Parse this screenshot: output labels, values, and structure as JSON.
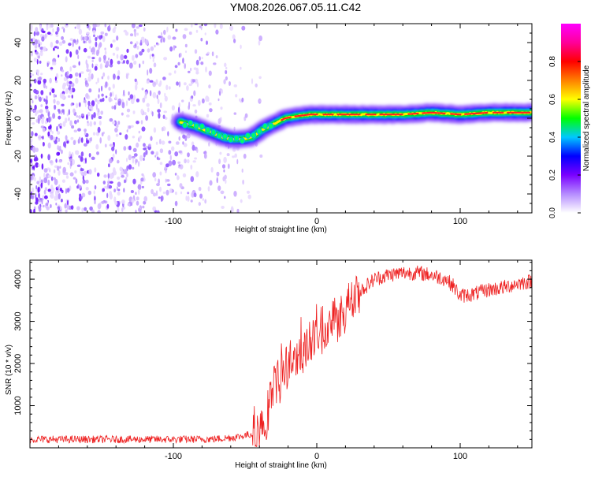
{
  "title": "YM08.2026.067.05.11.C42",
  "chart_data": [
    {
      "type": "heatmap",
      "name": "spectrogram",
      "xlabel": "Height of straight line (km)",
      "ylabel": "Frequency (Hz)",
      "xlim": [
        -200,
        150
      ],
      "ylim": [
        -50,
        50
      ],
      "xticks": [
        -100,
        0,
        100
      ],
      "yticks": [
        -40,
        -20,
        0,
        20,
        40
      ],
      "colorbar": {
        "label": "Normalized spectral amplitude",
        "range": [
          0,
          1
        ],
        "ticks": [
          0.0,
          0.2,
          0.4,
          0.6,
          0.8
        ],
        "tick_labels": [
          "0.0",
          "0.2",
          "0.4",
          "0.6",
          "0.8"
        ],
        "colormap": [
          "#ffffff",
          "#b58cff",
          "#7a00ff",
          "#0000ff",
          "#00c8ff",
          "#00ff00",
          "#ffff00",
          "#ff8000",
          "#ff0000",
          "#ff0099",
          "#ff00ff"
        ]
      },
      "noise_region": {
        "x_range": [
          -200,
          -50
        ],
        "freq_range": [
          -50,
          50
        ]
      },
      "signal_line": {
        "x": [
          -95,
          -85,
          -75,
          -65,
          -58,
          -52,
          -45,
          -38,
          -30,
          -22,
          -15,
          -5,
          0,
          10,
          30,
          60,
          80,
          100,
          120,
          150
        ],
        "y": [
          -2,
          -4,
          -7,
          -10,
          -11,
          -11,
          -10,
          -6,
          -3,
          0,
          1,
          2,
          2,
          2,
          2,
          2,
          3,
          2,
          3,
          3
        ]
      }
    },
    {
      "type": "line",
      "name": "snr",
      "xlabel": "Height of straight line (km)",
      "ylabel": "SNR (10 * v/v)",
      "xlim": [
        -200,
        150
      ],
      "ylim": [
        0,
        4450
      ],
      "xticks": [
        -100,
        0,
        100
      ],
      "yticks": [
        1000,
        2000,
        3000,
        4000
      ],
      "color": "#ee2222",
      "series": {
        "x": [
          -200,
          -150,
          -100,
          -70,
          -55,
          -45,
          -38,
          -34,
          -32,
          -30,
          -28,
          -25,
          -20,
          -15,
          -10,
          0,
          10,
          20,
          25,
          30,
          40,
          50,
          60,
          70,
          80,
          90,
          95,
          100,
          110,
          120,
          130,
          140,
          150
        ],
        "y": [
          200,
          200,
          200,
          210,
          260,
          330,
          500,
          800,
          1200,
          1500,
          1500,
          1700,
          1900,
          2050,
          2300,
          2700,
          3000,
          3300,
          3500,
          3700,
          4000,
          4100,
          4150,
          4150,
          4100,
          4000,
          3850,
          3600,
          3650,
          3750,
          3800,
          3900,
          3950
        ]
      }
    }
  ]
}
